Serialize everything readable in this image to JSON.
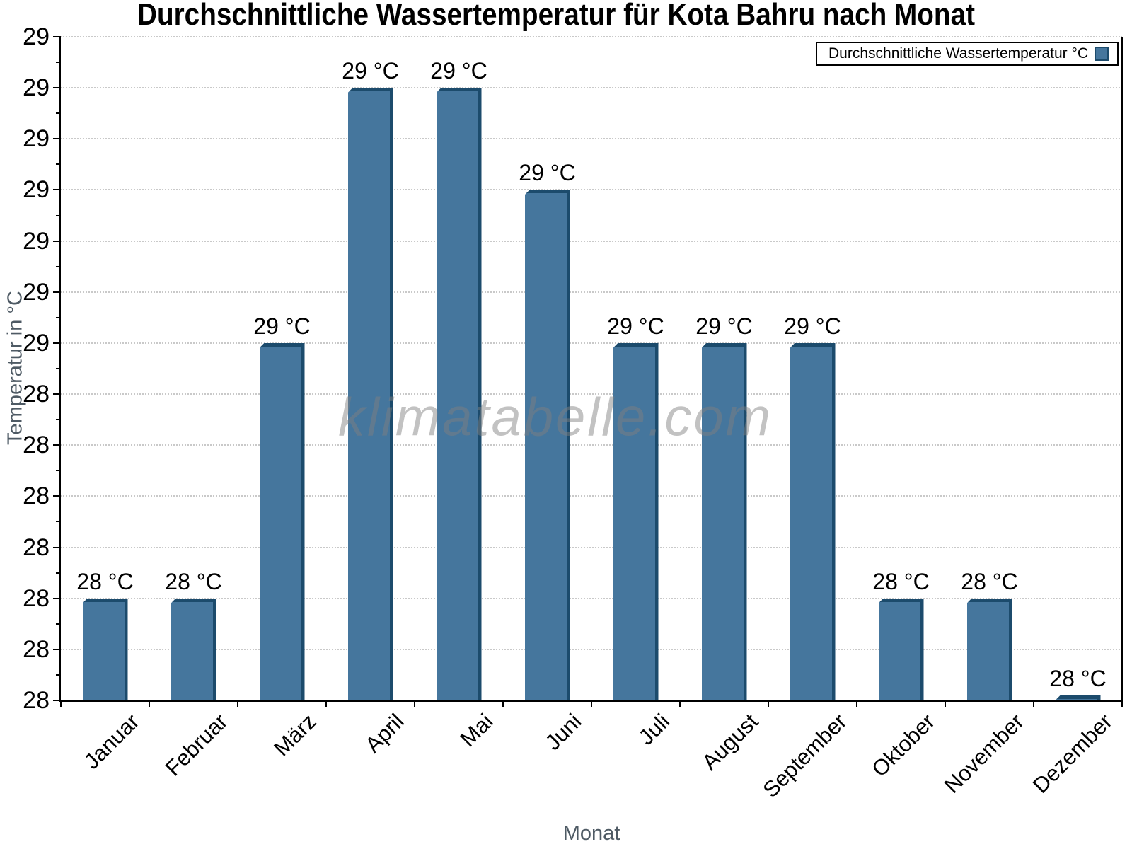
{
  "title": "Durchschnittliche Wassertemperatur für Kota Bahru nach Monat",
  "watermark": "klimatabelle.com",
  "legend": {
    "label": "Durchschnittliche Wassertemperatur °C"
  },
  "axes": {
    "y_title": "Temperatur in °C",
    "x_title": "Monat",
    "y_tick_labels_top_to_bottom": [
      "29",
      "29",
      "29",
      "29",
      "29",
      "29",
      "29",
      "28",
      "28",
      "28",
      "28",
      "28",
      "28",
      "28"
    ]
  },
  "chart_data": {
    "type": "bar",
    "title": "Durchschnittliche Wassertemperatur für Kota Bahru nach Monat",
    "categories": [
      "Januar",
      "Februar",
      "März",
      "April",
      "Mai",
      "Juni",
      "Juli",
      "August",
      "September",
      "Oktober",
      "November",
      "Dezember"
    ],
    "series": [
      {
        "name": "Durchschnittliche Wassertemperatur °C",
        "values": [
          28.16,
          28.16,
          28.56,
          28.96,
          28.96,
          28.8,
          28.56,
          28.56,
          28.56,
          28.16,
          28.16,
          28.0
        ]
      }
    ],
    "bar_value_labels": [
      "28 °C",
      "28 °C",
      "29 °C",
      "29 °C",
      "29 °C",
      "29 °C",
      "29 °C",
      "29 °C",
      "29 °C",
      "28 °C",
      "28 °C",
      "28 °C"
    ],
    "xlabel": "Monat",
    "ylabel": "Temperatur in °C",
    "ylim": [
      28.0,
      29.04
    ],
    "y_tick_step": 0.08,
    "y_tick_display_rounded": true,
    "grid": "horizontal-dotted",
    "legend_position": "top-right-inside",
    "colors": {
      "bar_fill": "#45769D",
      "bar_edge": "#1C4B6C",
      "grid": "#C9C9C9",
      "axis": "#000000",
      "axis_title": "#4E5A64",
      "watermark": "rgba(127,127,127,0.48)"
    }
  }
}
